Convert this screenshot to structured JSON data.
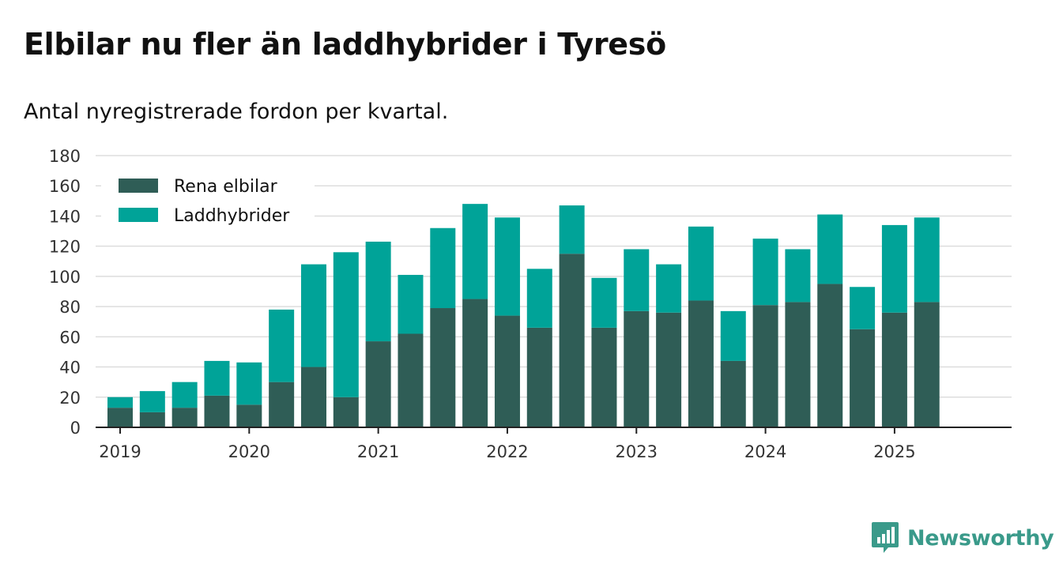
{
  "title": "Elbilar nu fler än laddhybrider i Tyresö",
  "subtitle": "Antal nyregistrerade fordon per kvartal.",
  "brand": "Newsworthy",
  "colors": {
    "elbilar": "#2f5d56",
    "laddhybrider": "#00a398",
    "grid": "#dddddd",
    "axis": "#222222",
    "brand": "#3a9a8a"
  },
  "chart_data": {
    "type": "bar",
    "stacked": true,
    "categories": [
      "2019 Q1",
      "2019 Q2",
      "2019 Q3",
      "2019 Q4",
      "2020 Q1",
      "2020 Q2",
      "2020 Q3",
      "2020 Q4",
      "2021 Q1",
      "2021 Q2",
      "2021 Q3",
      "2021 Q4",
      "2022 Q1",
      "2022 Q2",
      "2022 Q3",
      "2022 Q4",
      "2023 Q1",
      "2023 Q2",
      "2023 Q3",
      "2023 Q4",
      "2024 Q1",
      "2024 Q2",
      "2024 Q3",
      "2024 Q4",
      "2025 Q1",
      "2025 Q2",
      "2025 Q3"
    ],
    "series": [
      {
        "name": "Rena elbilar",
        "color": "#2f5d56",
        "values": [
          13,
          10,
          13,
          21,
          15,
          30,
          40,
          20,
          57,
          62,
          79,
          85,
          74,
          66,
          115,
          66,
          77,
          76,
          84,
          44,
          81,
          83,
          95,
          65,
          76,
          83,
          0
        ]
      },
      {
        "name": "Laddhybrider",
        "color": "#00a398",
        "values": [
          7,
          14,
          17,
          23,
          28,
          48,
          68,
          96,
          66,
          39,
          53,
          63,
          65,
          39,
          32,
          33,
          41,
          32,
          49,
          33,
          44,
          35,
          46,
          28,
          58,
          56,
          0
        ]
      }
    ],
    "x_tick_labels": [
      "2019",
      "2020",
      "2021",
      "2022",
      "2023",
      "2024",
      "2025"
    ],
    "y_ticks": [
      0,
      20,
      40,
      60,
      80,
      100,
      120,
      140,
      160,
      180
    ],
    "ylim": [
      0,
      180
    ],
    "grid": true,
    "legend_position": "top-left"
  }
}
